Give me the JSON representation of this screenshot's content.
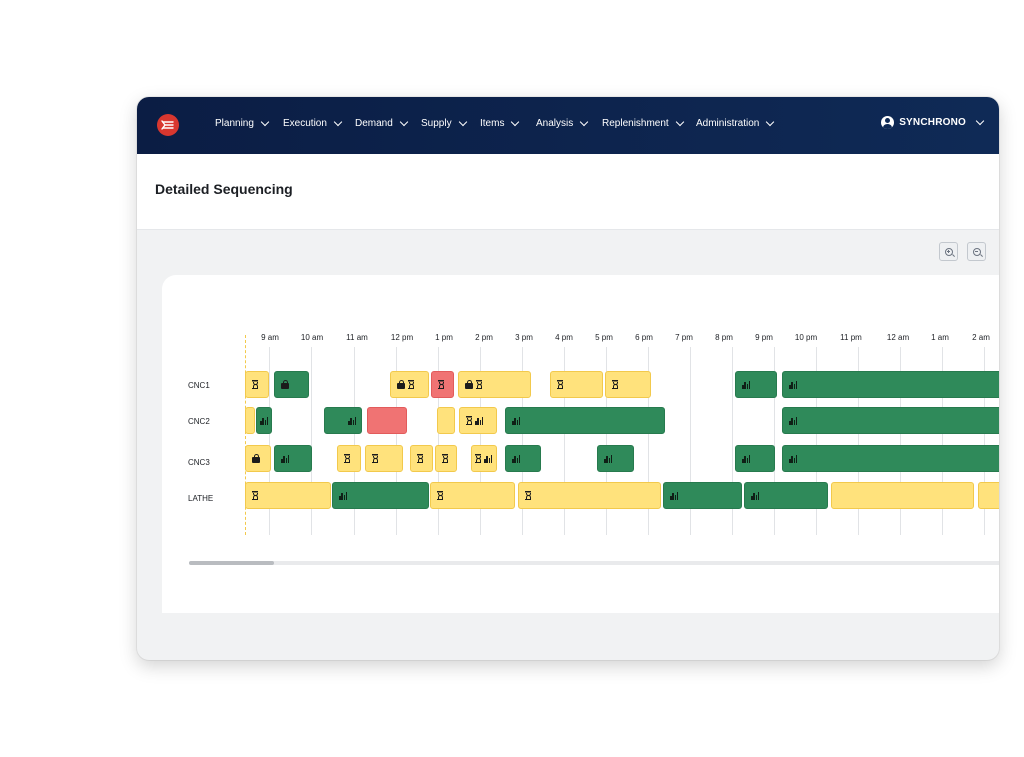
{
  "app": {
    "logo_icon": "synchrono-logo-icon",
    "brand_color": "#d8372f"
  },
  "nav": {
    "items": [
      {
        "label": "Planning"
      },
      {
        "label": "Execution"
      },
      {
        "label": "Demand"
      },
      {
        "label": "Supply"
      },
      {
        "label": "Items"
      },
      {
        "label": "Analysis"
      },
      {
        "label": "Replenishment"
      },
      {
        "label": "Administration"
      }
    ],
    "user": "SYNCHRONO"
  },
  "page": {
    "title": "Detailed Sequencing"
  },
  "toolbar": {
    "zoom_in_icon": "zoom-in-icon",
    "zoom_out_icon": "zoom-out-icon"
  },
  "gantt": {
    "time_ticks": [
      "9 am",
      "10 am",
      "11 am",
      "12 pm",
      "1 pm",
      "2 pm",
      "3 pm",
      "4 pm",
      "5 pm",
      "6 pm",
      "7 pm",
      "8 pm",
      "9 pm",
      "10 pm",
      "11 pm",
      "12 am",
      "1 am",
      "2 am"
    ],
    "rows": [
      {
        "label": "CNC1"
      },
      {
        "label": "CNC2"
      },
      {
        "label": "CNC3"
      },
      {
        "label": "LATHE"
      }
    ],
    "status_colors": {
      "waiting": "#ffe27c",
      "running": "#2f8a5a",
      "late": "#f07373"
    }
  }
}
